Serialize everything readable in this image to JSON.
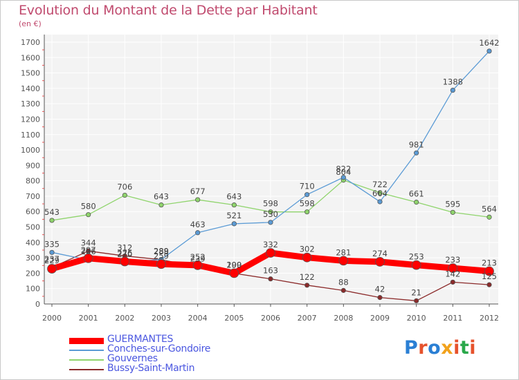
{
  "title": "Evolution du Montant de la Dette par Habitant",
  "unit": "(en €)",
  "logo": {
    "text": "Proxiti",
    "colors": [
      "#2a7fd4",
      "#e6522c",
      "#2a7fd4",
      "#f2a21c",
      "#e6522c",
      "#2aa84a",
      "#e6522c"
    ]
  },
  "chart_data": {
    "type": "line",
    "x": [
      "2000",
      "2001",
      "2002",
      "2003",
      "2004",
      "2005",
      "2006",
      "2007",
      "2008",
      "2009",
      "2010",
      "2011",
      "2012"
    ],
    "ylim": [
      0,
      1700
    ],
    "yticks": [
      "0",
      "100",
      "200",
      "300",
      "400",
      "500",
      "600",
      "700",
      "800",
      "900",
      "1000",
      "1100",
      "1200",
      "1300",
      "1400",
      "1500",
      "1600",
      "1700"
    ],
    "grid": true,
    "legend_position": "bottom-left",
    "series": [
      {
        "name": "GUERMANTES",
        "color": "#ff0000",
        "values": [
          229,
          297,
          276,
          259,
          252,
          200,
          332,
          302,
          281,
          274,
          253,
          233,
          213
        ],
        "labels": [
          "229",
          "297",
          "276",
          "259",
          "252",
          "200",
          "332",
          "302",
          "281",
          "274",
          "253",
          "233",
          "213"
        ]
      },
      {
        "name": "Conches-sur-Gondoire",
        "color": "#5b9bd5",
        "values": [
          335,
          286,
          270,
          289,
          463,
          521,
          530,
          710,
          822,
          664,
          981,
          1388,
          1642
        ],
        "labels": [
          "335",
          "286",
          "270",
          "289",
          "463",
          "521",
          "530",
          "710",
          "822",
          "664",
          "981",
          "1388",
          "1642"
        ]
      },
      {
        "name": "Gouvernes",
        "color": "#8fd46c",
        "values": [
          543,
          580,
          706,
          643,
          677,
          643,
          598,
          598,
          804,
          722,
          661,
          595,
          564
        ],
        "labels": [
          "543",
          "580",
          "706",
          "643",
          "677",
          "643",
          "598",
          "598",
          "804",
          "722",
          "661",
          "595",
          "564"
        ]
      },
      {
        "name": "Bussy-Saint-Martin",
        "color": "#8b2a2a",
        "values": [
          237,
          344,
          312,
          288,
          239,
          199,
          163,
          122,
          88,
          42,
          21,
          142,
          125
        ],
        "labels": [
          "237",
          "344",
          "312",
          "288",
          "239",
          "199",
          "163",
          "122",
          "88",
          "42",
          "21",
          "142",
          "125"
        ]
      }
    ]
  }
}
